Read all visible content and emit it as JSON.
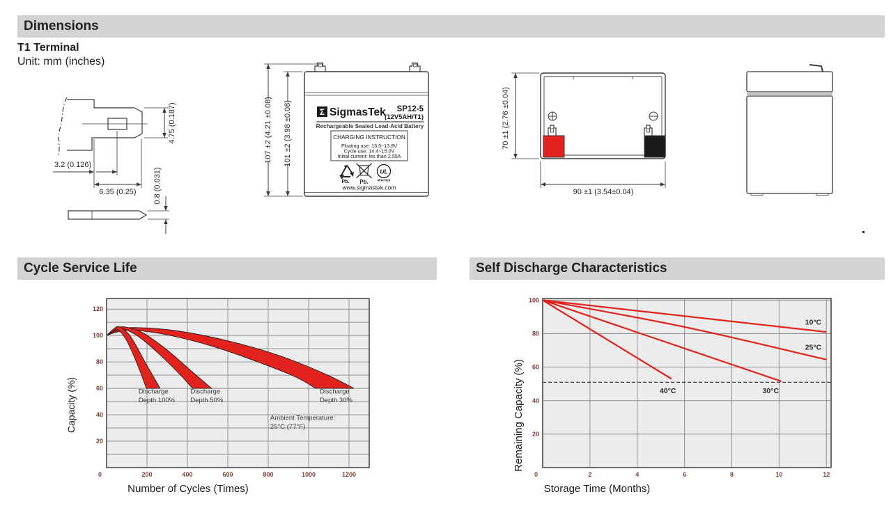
{
  "page": {
    "section_dimensions": "Dimensions",
    "terminal_type": "T1 Terminal",
    "unit_note": "Unit: mm (inches)",
    "section_cycle": "Cycle Service Life",
    "section_self_discharge": "Self Discharge Characteristics"
  },
  "terminal_drawing": {
    "dim_tip_to_hole": "3.2 (0.126)",
    "dim_tab_length": "6.35 (0.25)",
    "dim_tab_height": "4.75 (0.187)",
    "dim_thickness": "0.8 (0.031)"
  },
  "front_view": {
    "dim_total_height": "107 ±2 (4.21 ±0.08)",
    "dim_case_height": "101 ±2 (3.98 ±0.08)",
    "label": {
      "sigma": "Σ",
      "brand": "SigmasTek",
      "model": "SP12-5",
      "rating": "(12V5AH/T1)",
      "type_line": "Rechargeable Sealed Lead-Acid Battery",
      "charging_title": "CHARGING INSTRUCTION",
      "charging_floating": "Floating use: 13.5~13.8V",
      "charging_cycle": "Cycle use: 14.4~15.0V",
      "charging_current": "Initial current: les than 2.55A",
      "pb_recycle_caption": "Pb.",
      "pb_bin_caption": "Pb.",
      "ul_text": "UL",
      "ul_code": "MH47929",
      "website": "www.sigmastek.com"
    }
  },
  "top_view": {
    "dim_height": "70 ±1 (2.76 ±0.04)",
    "dim_width": "90 ±1 (3.54±0.04)",
    "terminal_positive_color": "#e2231d",
    "terminal_negative_color": "#1a1a1a"
  },
  "chart_data": [
    {
      "type": "area",
      "title": "Cycle Service Life",
      "xlabel": "Number of Cycles (Times)",
      "ylabel": "Capacity (%)",
      "xlim": [
        0,
        1300
      ],
      "ylim": [
        0,
        128
      ],
      "xticks": [
        200,
        400,
        600,
        800,
        1000,
        1200
      ],
      "yticks": [
        20,
        40,
        60,
        80,
        100,
        120
      ],
      "origin_label": "0",
      "grid_x_step": 200,
      "grid_y_step": 10,
      "grid": true,
      "bands": [
        {
          "name": "Discharge Depth 30%",
          "upper": [
            [
              0,
              100
            ],
            [
              60,
              104.5
            ],
            [
              150,
              106
            ],
            [
              350,
              103.5
            ],
            [
              600,
              96
            ],
            [
              850,
              85
            ],
            [
              1080,
              71
            ],
            [
              1225,
              60
            ]
          ],
          "lower": [
            [
              0,
              100
            ],
            [
              50,
              102.5
            ],
            [
              130,
              104
            ],
            [
              300,
              100.5
            ],
            [
              520,
              92
            ],
            [
              730,
              81
            ],
            [
              930,
              69
            ],
            [
              1035,
              60
            ]
          ]
        },
        {
          "name": "Discharge Depth 50%",
          "upper": [
            [
              0,
              100
            ],
            [
              45,
              105
            ],
            [
              90,
              106.5
            ],
            [
              180,
              102
            ],
            [
              300,
              89
            ],
            [
              420,
              73
            ],
            [
              520,
              60
            ]
          ],
          "lower": [
            [
              0,
              100
            ],
            [
              40,
              103.5
            ],
            [
              80,
              105
            ],
            [
              160,
              99
            ],
            [
              260,
              86
            ],
            [
              360,
              71
            ],
            [
              425,
              60
            ]
          ]
        },
        {
          "name": "Discharge Depth 100%",
          "upper": [
            [
              0,
              100
            ],
            [
              35,
              105
            ],
            [
              65,
              106.5
            ],
            [
              120,
              99
            ],
            [
              190,
              80
            ],
            [
              265,
              60
            ]
          ],
          "lower": [
            [
              0,
              100
            ],
            [
              30,
              103
            ],
            [
              55,
              104.5
            ],
            [
              100,
              96
            ],
            [
              150,
              79
            ],
            [
              197,
              60
            ]
          ]
        }
      ],
      "annotations": [
        {
          "lines": [
            "Discharge",
            "Depth 100%"
          ],
          "x": 158,
          "y": 56
        },
        {
          "lines": [
            "Discharge",
            "Depth 50%"
          ],
          "x": 415,
          "y": 56
        },
        {
          "lines": [
            "Discharge",
            "Depth 30%"
          ],
          "x": 1055,
          "y": 56
        },
        {
          "lines": [
            "Ambient Temperature:",
            "25°C (77°F)"
          ],
          "x": 810,
          "y": 36
        }
      ],
      "colors": {
        "band_fill": "#e2231d",
        "band_stroke": "#231f20",
        "plot_bg": "#ececec",
        "grid": "#909090",
        "border": "#4c4c4c",
        "tick_text": "#7c4035",
        "annotation_text": "#3a3a3a",
        "axis_label": "#1a1a1a"
      }
    },
    {
      "type": "line",
      "title": "Self Discharge Characteristics",
      "xlabel": "Storage Time (Months)",
      "ylabel": "Remaining Capacity (%)",
      "xlim": [
        0,
        12.2
      ],
      "ylim": [
        0,
        101
      ],
      "xticks": [
        2,
        4,
        6,
        8,
        10,
        12
      ],
      "yticks": [
        20,
        40,
        60,
        80,
        100
      ],
      "origin_label": "0",
      "grid_x_step": 2,
      "grid_y_step": 20,
      "grid": true,
      "dashed_line_y": 51,
      "series": [
        {
          "name": "10°C",
          "points": [
            [
              0,
              100
            ],
            [
              12,
              81
            ]
          ],
          "label_x": 11.1,
          "label_y": 85.5
        },
        {
          "name": "25°C",
          "points": [
            [
              0,
              100
            ],
            [
              6,
              84
            ],
            [
              12,
              64.5
            ]
          ],
          "label_x": 11.1,
          "label_y": 70.5
        },
        {
          "name": "30°C",
          "points": [
            [
              0,
              100
            ],
            [
              10.1,
              51.5
            ]
          ],
          "label_x": 9.3,
          "label_y": 44.5
        },
        {
          "name": "40°C",
          "points": [
            [
              0,
              100
            ],
            [
              5.45,
              53
            ]
          ],
          "label_x": 4.95,
          "label_y": 44.5
        }
      ],
      "colors": {
        "line": "#e2231d",
        "plot_bg": "#ececec",
        "grid": "#909090",
        "border": "#4c4c4c",
        "tick_text": "#7c4035",
        "series_label": "#2a2a2a",
        "axis_label": "#1a1a1a",
        "dashed": "#222222"
      }
    }
  ]
}
